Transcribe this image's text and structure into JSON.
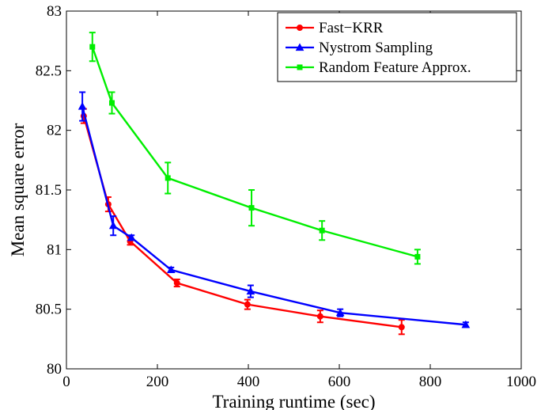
{
  "chart_data": {
    "type": "line",
    "title": "",
    "xlabel": "Training runtime (sec)",
    "ylabel": "Mean square error",
    "xlim": [
      0,
      1000
    ],
    "ylim": [
      80,
      83
    ],
    "xticks": [
      0,
      200,
      400,
      600,
      800,
      1000
    ],
    "yticks": [
      80,
      80.5,
      81,
      81.5,
      82,
      82.5,
      83
    ],
    "xtick_labels": [
      "0",
      "200",
      "400",
      "600",
      "800",
      "1000"
    ],
    "ytick_labels": [
      "80",
      "80.5",
      "81",
      "81.5",
      "82",
      "82.5",
      "83"
    ],
    "grid": false,
    "legend_position": "top-right",
    "series": [
      {
        "name": "Fast−KRR",
        "color": "#ff0000",
        "marker": "circle",
        "x": [
          38,
          92,
          140,
          243,
          398,
          558,
          737
        ],
        "y": [
          82.12,
          81.38,
          81.07,
          80.72,
          80.54,
          80.44,
          80.35
        ],
        "err": [
          0.06,
          0.06,
          0.03,
          0.03,
          0.04,
          0.05,
          0.06
        ]
      },
      {
        "name": "Nystrom Sampling",
        "color": "#0000ff",
        "marker": "triangle",
        "x": [
          35,
          103,
          143,
          230,
          405,
          602,
          878
        ],
        "y": [
          82.2,
          81.2,
          81.1,
          80.83,
          80.65,
          80.47,
          80.37
        ],
        "err": [
          0.12,
          0.08,
          0.02,
          0.02,
          0.05,
          0.03,
          0.02
        ]
      },
      {
        "name": "Random Feature Approx.",
        "color": "#00ee00",
        "marker": "square",
        "x": [
          57,
          100,
          223,
          407,
          562,
          772
        ],
        "y": [
          82.7,
          82.23,
          81.6,
          81.35,
          81.16,
          80.94
        ],
        "err": [
          0.12,
          0.09,
          0.13,
          0.15,
          0.08,
          0.06
        ]
      }
    ]
  }
}
